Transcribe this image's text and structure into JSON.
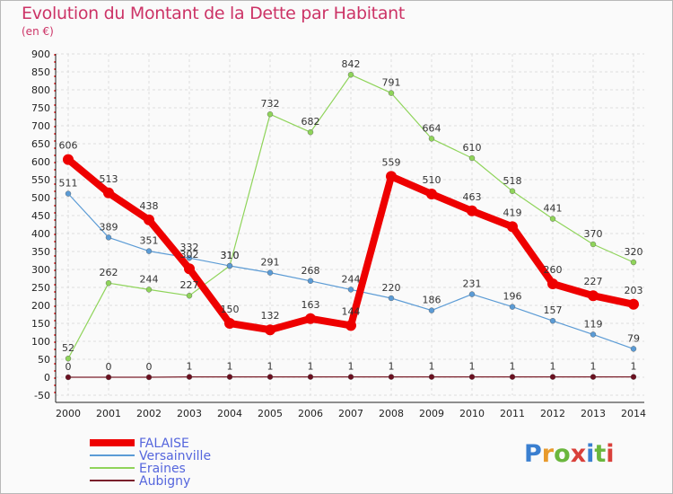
{
  "header": {
    "title": "Evolution du Montant de la Dette par Habitant",
    "unit": "(en €)"
  },
  "logo": {
    "text": "Proxiti",
    "letter_colors": [
      "#3a7fd0",
      "#e89a2c",
      "#6ab63d",
      "#d9403a",
      "#3a7fd0",
      "#6ab63d",
      "#d9403a"
    ]
  },
  "chart_data": {
    "type": "line",
    "x": [
      "2000",
      "2001",
      "2002",
      "2003",
      "2004",
      "2005",
      "2006",
      "2007",
      "2008",
      "2009",
      "2010",
      "2011",
      "2012",
      "2013",
      "2014"
    ],
    "ylim": [
      -50,
      900
    ],
    "yticks": [
      -50,
      0,
      50,
      100,
      150,
      200,
      250,
      300,
      350,
      400,
      450,
      500,
      550,
      600,
      650,
      700,
      750,
      800,
      850,
      900
    ],
    "grid": true,
    "legend_position": "bottom-left",
    "series": [
      {
        "name": "FALAISE",
        "color": "#ee0000",
        "values": [
          606,
          513,
          438,
          302,
          150,
          132,
          163,
          144,
          559,
          510,
          463,
          419,
          260,
          227,
          203
        ]
      },
      {
        "name": "Versainville",
        "color": "#5b9bd5",
        "values": [
          511,
          389,
          351,
          332,
          310,
          291,
          268,
          244,
          220,
          186,
          231,
          196,
          157,
          119,
          79
        ]
      },
      {
        "name": "Eraines",
        "color": "#8fd45a",
        "values": [
          52,
          262,
          244,
          227,
          310,
          732,
          682,
          842,
          791,
          664,
          610,
          518,
          441,
          370,
          320
        ]
      },
      {
        "name": "Aubigny",
        "color": "#7a1f2b",
        "values": [
          0,
          0,
          0,
          1,
          1,
          1,
          1,
          1,
          1,
          1,
          1,
          1,
          1,
          1,
          1
        ]
      }
    ]
  }
}
